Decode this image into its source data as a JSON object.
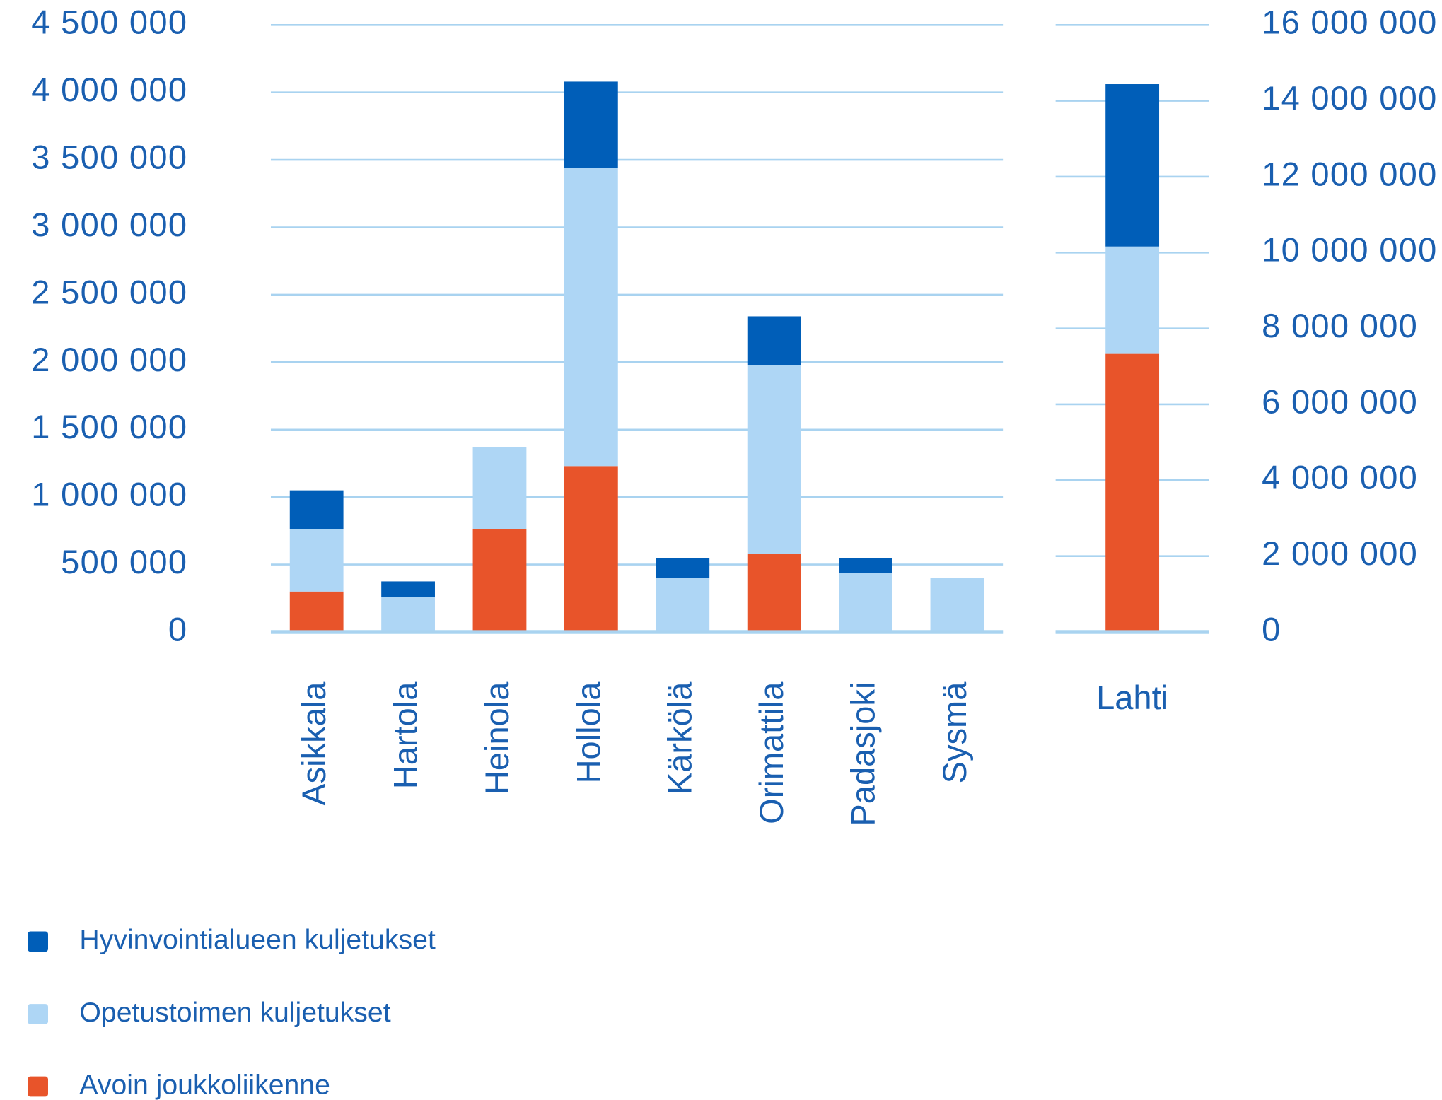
{
  "chart_data": [
    {
      "type": "bar",
      "stacked": true,
      "categories": [
        "Asikkala",
        "Hartola",
        "Heinola",
        "Hollola",
        "Kärkölä",
        "Orimattila",
        "Padasjoki",
        "Sysmä"
      ],
      "series": [
        {
          "name": "Hyvinvointialueen kuljetukset",
          "color": "#005eb8",
          "values": [
            290000,
            115000,
            0,
            640000,
            150000,
            360000,
            110000,
            0
          ]
        },
        {
          "name": "Opetustoimen kuljetukset",
          "color": "#aed6f5",
          "values": [
            460000,
            260000,
            610000,
            2210000,
            400000,
            1400000,
            440000,
            400000
          ]
        },
        {
          "name": "Avoin joukkoliikenne",
          "color": "#e8542a",
          "values": [
            300000,
            0,
            760000,
            1230000,
            0,
            580000,
            0,
            0
          ]
        }
      ],
      "ylim": [
        0,
        4500000
      ],
      "yticks": [
        0,
        {
          "value": 500000,
          "label": "500 000"
        },
        {
          "value": 1000000,
          "label": "1 000 000"
        },
        {
          "value": 1500000,
          "label": "1 500 000"
        },
        {
          "value": 2000000,
          "label": "2 000 000"
        },
        {
          "value": 2500000,
          "label": "2 500 000"
        },
        {
          "value": 3000000,
          "label": "3 000 000"
        },
        {
          "value": 3500000,
          "label": "3 500 000"
        },
        {
          "value": 4000000,
          "label": "4 000 000"
        },
        {
          "value": 4500000,
          "label": "4 500 000"
        }
      ],
      "grid": true,
      "legend": "bottom-left"
    },
    {
      "type": "bar",
      "stacked": true,
      "categories": [
        "Lahti"
      ],
      "series": [
        {
          "color": "#005eb8",
          "values": [
            4280000
          ]
        },
        {
          "color": "#aed6f5",
          "values": [
            2830000
          ]
        },
        {
          "color": "#e8542a",
          "values": [
            7330000
          ]
        }
      ],
      "ylim": [
        0,
        16000000
      ],
      "yticks": [
        0,
        {
          "value": 2000000,
          "label": "2 000 000"
        },
        {
          "value": 4000000,
          "label": "4 000 000"
        },
        {
          "value": 6000000,
          "label": "6 000 000"
        },
        {
          "value": 8000000,
          "label": "8 000 000"
        },
        {
          "value": 10000000,
          "label": "10 000 000"
        },
        {
          "value": 12000000,
          "label": "12 000 000"
        },
        {
          "value": 14000000,
          "label": "14 000 000"
        },
        {
          "value": 16000000,
          "label": "16 000 000"
        }
      ],
      "grid": true
    }
  ]
}
